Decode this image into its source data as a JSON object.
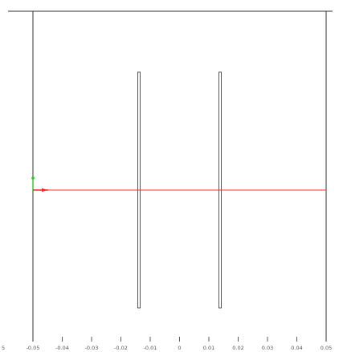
{
  "viewport": {
    "x_range": [
      -0.05,
      0.05
    ],
    "x_ticks": [
      -0.05,
      -0.04,
      -0.03,
      -0.02,
      -0.01,
      0,
      0.01,
      0.02,
      0.03,
      0.04,
      0.05
    ],
    "x_tick_labels": [
      "-0.05",
      "-0.04",
      "-0.03",
      "-0.02",
      "-0.01",
      "0",
      "0.01",
      "0.02",
      "0.03",
      "0.04",
      "0.05"
    ],
    "edge_tick_label": "5",
    "plates": [
      {
        "x_center": -0.0138
      },
      {
        "x_center": 0.0138
      }
    ],
    "beam_color": "#ff3333",
    "x_axis_color": "#ff2222",
    "y_axis_color": "#22cc22",
    "frame_color": "#333333",
    "plate_color": "#444444"
  }
}
